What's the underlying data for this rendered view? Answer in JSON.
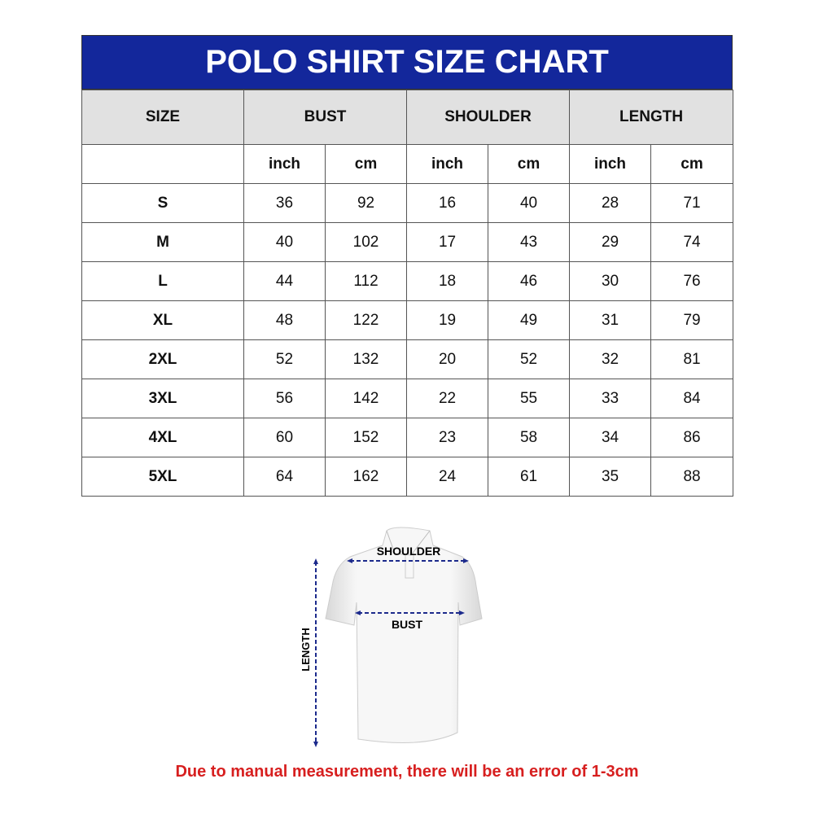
{
  "title": "POLO SHIRT SIZE CHART",
  "headers": {
    "size": "SIZE",
    "bust": "BUST",
    "shoulder": "SHOULDER",
    "length": "LENGTH"
  },
  "units": [
    "inch",
    "cm",
    "inch",
    "cm",
    "inch",
    "cm"
  ],
  "rows": [
    {
      "size": "S",
      "values": [
        "36",
        "92",
        "16",
        "40",
        "28",
        "71"
      ]
    },
    {
      "size": "M",
      "values": [
        "40",
        "102",
        "17",
        "43",
        "29",
        "74"
      ]
    },
    {
      "size": "L",
      "values": [
        "44",
        "112",
        "18",
        "46",
        "30",
        "76"
      ]
    },
    {
      "size": "XL",
      "values": [
        "48",
        "122",
        "19",
        "49",
        "31",
        "79"
      ]
    },
    {
      "size": "2XL",
      "values": [
        "52",
        "132",
        "20",
        "52",
        "32",
        "81"
      ]
    },
    {
      "size": "3XL",
      "values": [
        "56",
        "142",
        "22",
        "55",
        "33",
        "84"
      ]
    },
    {
      "size": "4XL",
      "values": [
        "60",
        "152",
        "23",
        "58",
        "34",
        "86"
      ]
    },
    {
      "size": "5XL",
      "values": [
        "64",
        "162",
        "24",
        "61",
        "35",
        "88"
      ]
    }
  ],
  "diagram": {
    "shoulder_label": "SHOULDER",
    "bust_label": "BUST",
    "length_label": "LENGTH"
  },
  "note": "Due to manual measurement, there will be an error of 1-3cm",
  "colors": {
    "title_bg": "#13279b",
    "header_bg": "#e1e1e1",
    "arrow": "#1c2a8c",
    "note": "#d71f1f"
  }
}
